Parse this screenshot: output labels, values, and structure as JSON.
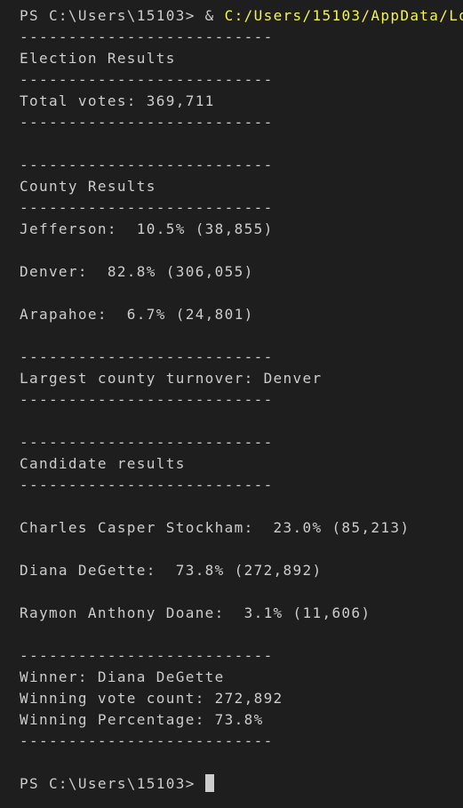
{
  "first_line": {
    "prompt": "PS C:\\Users\\15103> &",
    "command": "C:/Users/15103/AppData/Lo"
  },
  "lines": [
    "--------------------------",
    "Election Results",
    "--------------------------",
    "Total votes: 369,711",
    "--------------------------",
    "--------------------------",
    "County Results",
    "--------------------------",
    "Jefferson:  10.5% (38,855)",
    "Denver:  82.8% (306,055)",
    "Arapahoe:  6.7% (24,801)",
    "--------------------------",
    "Largest county turnover: Denver",
    "--------------------------",
    "--------------------------",
    "Candidate results",
    "--------------------------",
    "Charles Casper Stockham:  23.0% (85,213)",
    "Diana DeGette:  73.8% (272,892)",
    "Raymon Anthony Doane:  3.1% (11,606)",
    "--------------------------",
    "Winner: Diana DeGette",
    "Winning vote count: 272,892",
    "Winning Percentage: 73.8%",
    "--------------------------"
  ],
  "last_prompt": "PS C:\\Users\\15103>"
}
